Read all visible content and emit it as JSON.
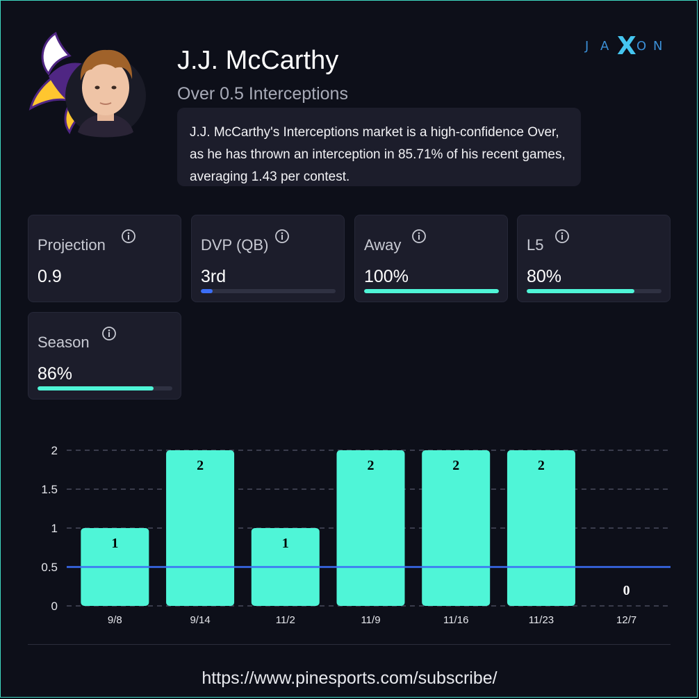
{
  "player": {
    "name": "J.J. McCarthy",
    "market": "Over 0.5 Interceptions",
    "summary": "J.J. McCarthy's Interceptions market is a high-confidence Over, as he has thrown an interception in 85.71% of his recent games, averaging 1.43 per contest."
  },
  "brand": {
    "logo_text": "JAXON",
    "logo_letters": [
      "J",
      "A",
      "X",
      "O",
      "N"
    ]
  },
  "stats": [
    {
      "label": "Projection",
      "value": "0.9",
      "bar": null,
      "bar_color": null
    },
    {
      "label": "DVP (QB)",
      "value": "3rd",
      "bar": 0.09,
      "bar_color": "#3b6ef6"
    },
    {
      "label": "Away",
      "value": "100%",
      "bar": 1.0,
      "bar_color": "#4ff5d7"
    },
    {
      "label": "L5",
      "value": "80%",
      "bar": 0.8,
      "bar_color": "#4ff5d7"
    },
    {
      "label": "Season",
      "value": "86%",
      "bar": 0.86,
      "bar_color": "#4ff5d7"
    }
  ],
  "chart_data": {
    "type": "bar",
    "categories": [
      "9/8",
      "9/14",
      "11/2",
      "11/9",
      "11/16",
      "11/23",
      "12/7"
    ],
    "values": [
      1,
      2,
      1,
      2,
      2,
      2,
      0
    ],
    "data_labels": [
      "1",
      "2",
      "1",
      "2",
      "2",
      "2",
      "0"
    ],
    "y_ticks": [
      "0",
      "0.5",
      "1",
      "1.5",
      "2"
    ],
    "ylim": [
      0,
      2
    ],
    "line_value": 0.5,
    "grid": true,
    "bar_color": "#4ff5d7",
    "line_color": "#3b6ef6"
  },
  "footer": {
    "url": "https://www.pinesports.com/subscribe/"
  }
}
